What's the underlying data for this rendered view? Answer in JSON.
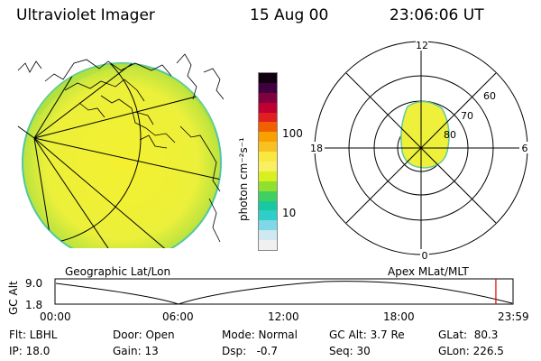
{
  "header": {
    "instrument": "Ultraviolet Imager",
    "date": "15 Aug 00",
    "time": "23:06:06 UT"
  },
  "colorbar": {
    "unit_label": "photon cm⁻²s⁻¹",
    "tick_100": "100",
    "tick_10": "10",
    "colors": [
      "#f0f0f0",
      "#d0e8f0",
      "#7fd8e8",
      "#2ecfc8",
      "#18c8a0",
      "#40d060",
      "#90e030",
      "#d8f020",
      "#f8f060",
      "#f8e840",
      "#f8c020",
      "#f8a000",
      "#f06000",
      "#e02020",
      "#c00030",
      "#800040",
      "#400040",
      "#100010"
    ]
  },
  "polar": {
    "label_12": "12",
    "label_18": "18",
    "label_6": "6",
    "label_0": "0",
    "label_60": "60",
    "label_70": "70",
    "label_80": "80"
  },
  "timeline": {
    "left_title": "Geographic Lat/Lon",
    "right_title": "Apex MLat/MLT",
    "axis_title": "GC Alt",
    "y_top": "9.0",
    "y_bottom": "1.8",
    "ticks": [
      "00:00",
      "06:00",
      "12:00",
      "18:00",
      "23:59"
    ],
    "marker_time_fraction": 0.9625
  },
  "info": {
    "flt": "Flt: LBHL",
    "ip": "IP: 18.0",
    "door": "Door: Open",
    "gain": "Gain: 13",
    "mode": "Mode: Normal",
    "dsp": "Dsp:   -0.7",
    "gcalt": "GC Alt: 3.7 Re",
    "seq": "Seq: 30",
    "glat": "GLat:  80.3",
    "glon": "GLon: 226.5"
  }
}
